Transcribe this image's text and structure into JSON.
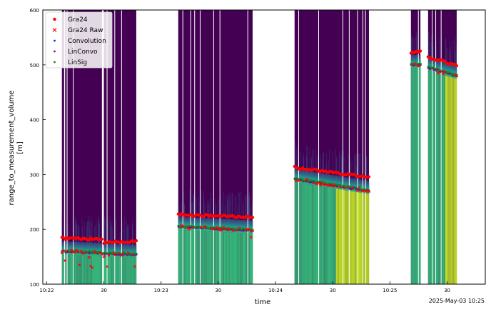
{
  "chart_data": {
    "type": "scatter",
    "background": "heatmap",
    "xlabel": "time",
    "ylabel_line1": "range_to_measurement_volume",
    "ylabel_line2": "[m]",
    "x_unit": "seconds since 10:22:00",
    "xlim": [
      -2,
      230
    ],
    "ylim": [
      100,
      600
    ],
    "x_ticks": [
      {
        "value": 0,
        "label": "10:22"
      },
      {
        "value": 30,
        "label": "30"
      },
      {
        "value": 60,
        "label": "10:23"
      },
      {
        "value": 90,
        "label": "30"
      },
      {
        "value": 120,
        "label": "10:24"
      },
      {
        "value": 150,
        "label": "30"
      },
      {
        "value": 180,
        "label": "10:25"
      },
      {
        "value": 210,
        "label": "30"
      }
    ],
    "y_ticks": [
      100,
      200,
      300,
      400,
      500,
      600
    ],
    "date_label": "2025-May-03 10:25",
    "legend": [
      {
        "name": "Gra24",
        "marker": "dot",
        "color": "#ff0000"
      },
      {
        "name": "Gra24 Raw",
        "marker": "x",
        "color": "#ff0000"
      },
      {
        "name": "Convolution",
        "marker": "dot",
        "color": "#1f1fd6"
      },
      {
        "name": "LinConvo",
        "marker": "dot",
        "color": "#8b008b"
      },
      {
        "name": "LinSig",
        "marker": "dot",
        "color": "#138a13"
      }
    ],
    "blocks": [
      {
        "x0": 8,
        "x1": 29,
        "gra24": [
          184,
          182
        ],
        "conv": [
          160,
          157
        ],
        "outlier_lo": 125
      },
      {
        "x0": 30,
        "x1": 47,
        "gra24": [
          176,
          178
        ],
        "conv": [
          156,
          154
        ],
        "outlier_lo": 130
      },
      {
        "x0": 69,
        "x1": 108,
        "gra24": [
          227,
          222
        ],
        "conv": [
          205,
          198
        ],
        "outlier_lo": 185
      },
      {
        "x0": 130,
        "x1": 169,
        "gra24": [
          313,
          295
        ],
        "conv": [
          292,
          270
        ],
        "outlier_lo": 280
      },
      {
        "x0": 191,
        "x1": 196,
        "gra24": [
          522,
          525
        ],
        "conv": [
          500,
          500
        ],
        "outlier_lo": 495
      },
      {
        "x0": 200,
        "x1": 215,
        "gra24": [
          513,
          500
        ],
        "conv": [
          495,
          480
        ],
        "outlier_lo": 478
      }
    ],
    "colors": {
      "background_cloud": "#440154",
      "mid": "#2a788e",
      "teal": "#21918c",
      "low_green": "#35b779",
      "yellow": "#bddf26"
    }
  }
}
